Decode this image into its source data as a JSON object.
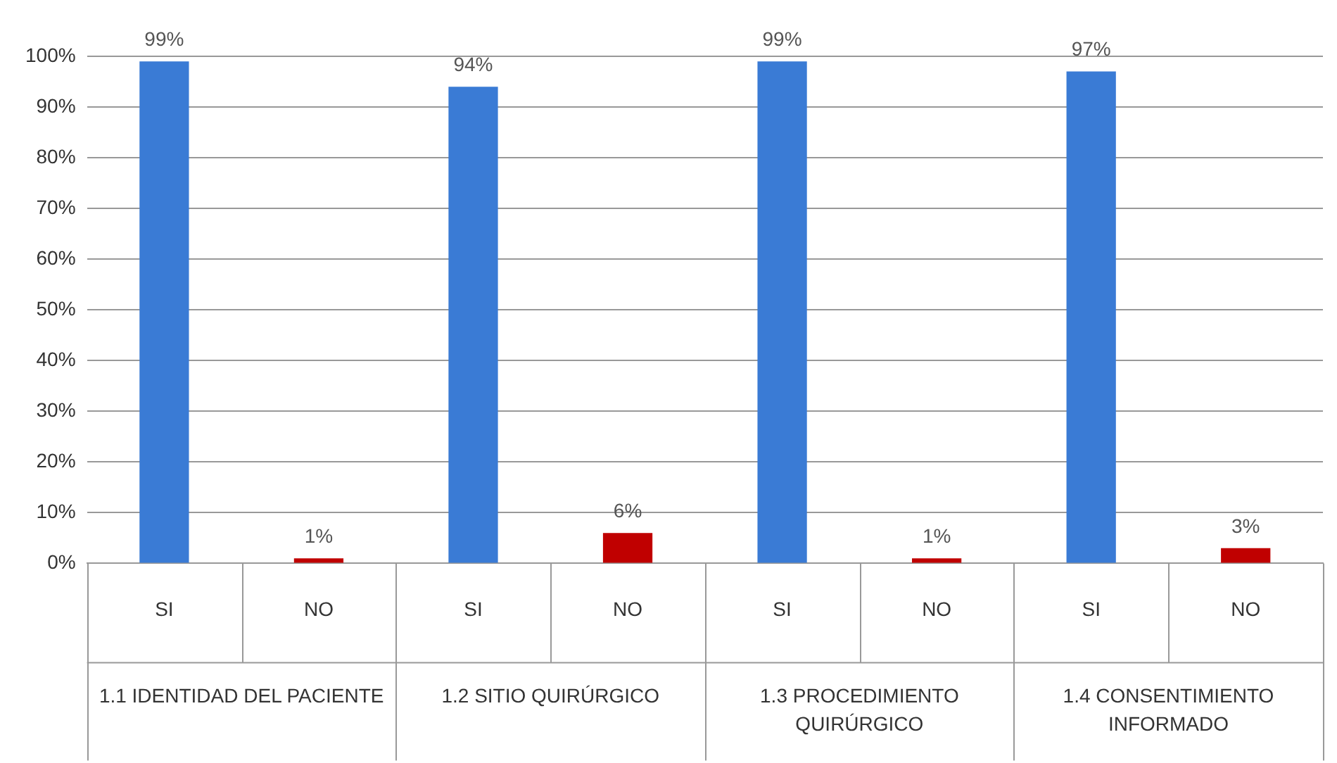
{
  "chart_data": {
    "type": "bar",
    "categories": [
      "SI",
      "NO",
      "SI",
      "NO",
      "SI",
      "NO",
      "SI",
      "NO"
    ],
    "values": [
      99,
      1,
      94,
      6,
      99,
      1,
      97,
      3
    ],
    "colors": [
      "#3a7bd5",
      "#c00000",
      "#3a7bd5",
      "#c00000",
      "#3a7bd5",
      "#c00000",
      "#3a7bd5",
      "#c00000"
    ],
    "value_labels": [
      "99%",
      "1%",
      "94%",
      "6%",
      "99%",
      "1%",
      "97%",
      "3%"
    ],
    "ylim": [
      0,
      100
    ],
    "yticks": [
      {
        "value": 0,
        "label": "0%"
      },
      {
        "value": 10,
        "label": "10%"
      },
      {
        "value": 20,
        "label": "20%"
      },
      {
        "value": 30,
        "label": "30%"
      },
      {
        "value": 40,
        "label": "40%"
      },
      {
        "value": 50,
        "label": "50%"
      },
      {
        "value": 60,
        "label": "60%"
      },
      {
        "value": 70,
        "label": "70%"
      },
      {
        "value": 80,
        "label": "80%"
      },
      {
        "value": 90,
        "label": "90%"
      },
      {
        "value": 100,
        "label": "100%"
      }
    ],
    "grid": "y",
    "annotations": [
      "1.1 IDENTIDAD DEL PACIENTE",
      "1.2 SITIO QUIRÚRGICO",
      "1.3 PROCEDIMIENTO QUIRÚRGICO",
      "1.4 CONSENTIMIENTO INFORMADO"
    ]
  }
}
